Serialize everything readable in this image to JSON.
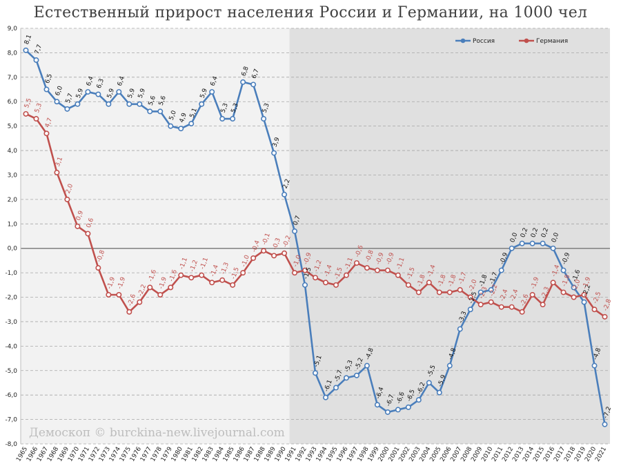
{
  "chart_data": {
    "type": "line",
    "title": "Естественный прирост населения России и Германии, на 1000 чел",
    "watermark": "Демоскоп © burckina-new.livejournal.com",
    "ylim": [
      -8.0,
      9.0
    ],
    "y_ticks": [
      "9,0",
      "8,0",
      "7,0",
      "6,0",
      "5,0",
      "4,0",
      "3,0",
      "2,0",
      "1,0",
      "0,0",
      "-1,0",
      "-2,0",
      "-3,0",
      "-4,0",
      "-5,0",
      "-6,0",
      "-7,0",
      "-8,0"
    ],
    "grid": true,
    "legend_position": "top-right",
    "shaded_region_start": "1991",
    "x": [
      "1965",
      "1966",
      "1967",
      "1968",
      "1969",
      "1970",
      "1971",
      "1972",
      "1973",
      "1974",
      "1975",
      "1976",
      "1977",
      "1978",
      "1979",
      "1980",
      "1981",
      "1982",
      "1983",
      "1984",
      "1985",
      "1986",
      "1987",
      "1988",
      "1989",
      "1990",
      "1991",
      "1992",
      "1993",
      "1994",
      "1995",
      "1996",
      "1997",
      "1998",
      "1999",
      "2000",
      "2001",
      "2002",
      "2003",
      "2004",
      "2005",
      "2006",
      "2007",
      "2008",
      "2009",
      "2010",
      "2011",
      "2012",
      "2013",
      "2014",
      "2015",
      "2016",
      "2017",
      "2018",
      "2019",
      "2020",
      "2021"
    ],
    "series": [
      {
        "name": "Россия",
        "color": "#4a7ebb",
        "values": [
          8.1,
          7.7,
          6.5,
          6.0,
          5.7,
          5.9,
          6.4,
          6.3,
          5.9,
          6.4,
          5.9,
          5.9,
          5.6,
          5.6,
          5.0,
          4.9,
          5.1,
          5.9,
          6.4,
          5.3,
          5.3,
          6.8,
          6.7,
          5.3,
          3.9,
          2.2,
          0.7,
          -1.5,
          -5.1,
          -6.1,
          -5.7,
          -5.3,
          -5.2,
          -4.8,
          -6.4,
          -6.7,
          -6.6,
          -6.5,
          -6.2,
          -5.5,
          -5.9,
          -4.8,
          -3.3,
          -2.5,
          -1.8,
          -1.7,
          -0.9,
          0.0,
          0.2,
          0.2,
          0.2,
          0.0,
          -0.9,
          -1.6,
          -2.2,
          -4.8,
          -7.2
        ],
        "labels": [
          "8,1",
          "7,7",
          "6,5",
          "6,0",
          "5,7",
          "5,9",
          "6,4",
          "6,3",
          "5,9",
          "6,4",
          "5,9",
          "5,9",
          "5,6",
          "5,6",
          "5,0",
          "4,9",
          "5,1",
          "5,9",
          "6,4",
          "5,3",
          "5,3",
          "6,8",
          "6,7",
          "5,3",
          "3,9",
          "2,2",
          "0,7",
          "-1,5",
          "-5,1",
          "-6,1",
          "-5,7",
          "-5,3",
          "-5,2",
          "-4,8",
          "-6,4",
          "-6,7",
          "-6,6",
          "-6,5",
          "-6,2",
          "-5,5",
          "-5,9",
          "-4,8",
          "-3,3",
          "-2,5",
          "-1,8",
          "-1,7",
          "-0,9",
          "0,0",
          "0,2",
          "0,2",
          "0,2",
          "0,0",
          "-0,9",
          "-1,6",
          "-2,2",
          "-4,8",
          "-7,2"
        ]
      },
      {
        "name": "Германия",
        "color": "#c0504d",
        "values": [
          5.5,
          5.3,
          4.7,
          3.1,
          2.0,
          0.9,
          0.6,
          -0.8,
          -1.9,
          -1.9,
          -2.6,
          -2.2,
          -1.6,
          -1.9,
          -1.6,
          -1.1,
          -1.2,
          -1.1,
          -1.4,
          -1.3,
          -1.5,
          -1.0,
          -0.4,
          -0.1,
          -0.3,
          -0.2,
          -1.0,
          -0.9,
          -1.2,
          -1.4,
          -1.5,
          -1.1,
          -0.6,
          -0.8,
          -0.9,
          -0.9,
          -1.1,
          -1.5,
          -1.8,
          -1.4,
          -1.8,
          -1.8,
          -1.7,
          -2.0,
          -2.3,
          -2.2,
          -2.4,
          -2.4,
          -2.6,
          -1.9,
          -2.3,
          -1.4,
          -1.8,
          -2.0,
          -1.9,
          -2.5,
          -2.8
        ],
        "labels": [
          "5,5",
          "5,3",
          "4,7",
          "3,1",
          "2,0",
          "0,9",
          "0,6",
          "-0,8",
          "-1,9",
          "-1,9",
          "-2,6",
          "-2,2",
          "-1,6",
          "-1,9",
          "-1,6",
          "-1,1",
          "-1,2",
          "-1,1",
          "-1,4",
          "-1,3",
          "-1,5",
          "-1,0",
          "-0,4",
          "-0,1",
          "-0,3",
          "-0,2",
          "-1,0",
          "-0,9",
          "-1,2",
          "-1,4",
          "-1,5",
          "-1,1",
          "-0,6",
          "-0,8",
          "-0,9",
          "-0,9",
          "-1,1",
          "-1,5",
          "-1,8",
          "-1,4",
          "-1,8",
          "-1,8",
          "-1,7",
          "-2,0",
          "-2,3",
          "-2,2",
          "-2,4",
          "-2,4",
          "-2,6",
          "-1,9",
          "-2,3",
          "-1,4",
          "-1,8",
          "-2,0",
          "-1,9",
          "-2,5",
          "-2,8"
        ]
      }
    ]
  }
}
